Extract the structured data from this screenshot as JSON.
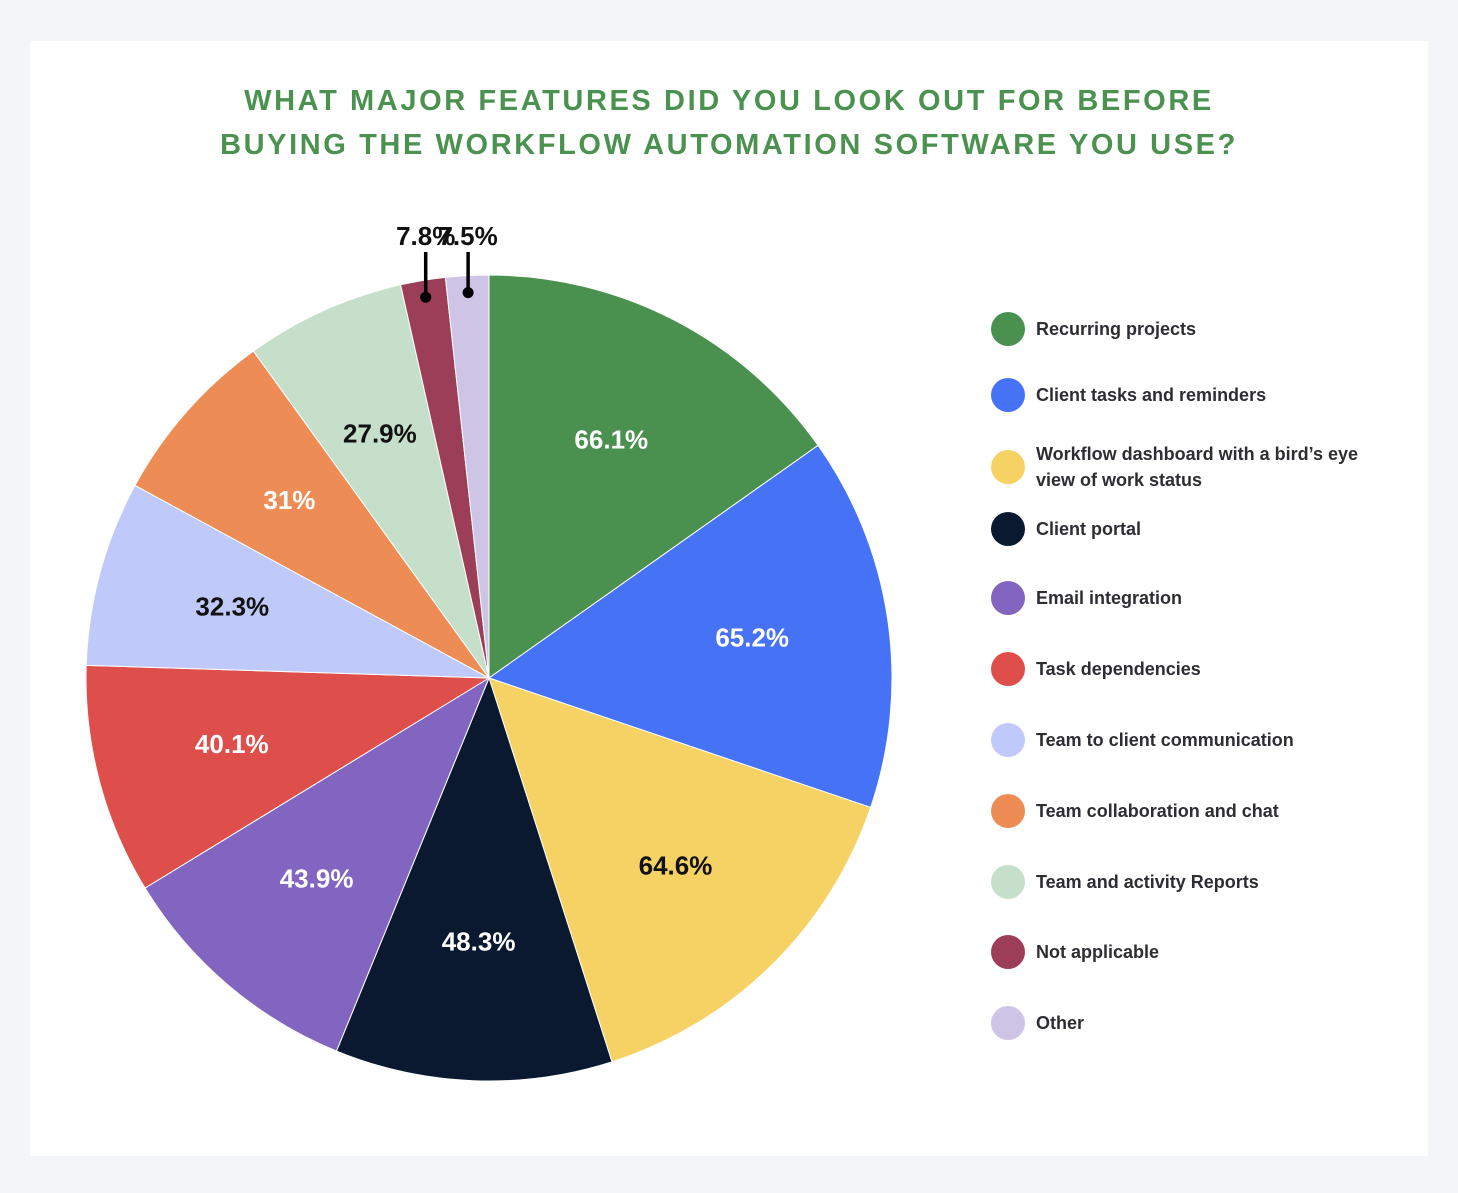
{
  "chart_data": {
    "type": "pie",
    "title_lines": [
      "WHAT MAJOR FEATURES DID YOU LOOK OUT FOR BEFORE",
      "BUYING THE WORKFLOW AUTOMATION SOFTWARE YOU USE?"
    ],
    "slices": [
      {
        "label": "Recurring projects",
        "value": 66.1,
        "display": "66.1%",
        "color": "#4a914f",
        "text_color": "#ffffff"
      },
      {
        "label": "Client tasks and reminders",
        "value": 65.2,
        "display": "65.2%",
        "color": "#4672f5",
        "text_color": "#ffffff"
      },
      {
        "label": "Workflow dashboard with a bird’s eye view of work status",
        "value": 64.6,
        "display": "64.6%",
        "color": "#f6d264",
        "text_color": "#111111"
      },
      {
        "label": "Client portal",
        "value": 48.3,
        "display": "48.3%",
        "color": "#0a1930",
        "text_color": "#ffffff"
      },
      {
        "label": "Email integration",
        "value": 43.9,
        "display": "43.9%",
        "color": "#8165c0",
        "text_color": "#ffffff"
      },
      {
        "label": "Task dependencies",
        "value": 40.1,
        "display": "40.1%",
        "color": "#de4e4a",
        "text_color": "#ffffff"
      },
      {
        "label": "Team to client communication",
        "value": 32.3,
        "display": "32.3%",
        "color": "#bfcafb",
        "text_color": "#111111"
      },
      {
        "label": "Team collaboration and chat",
        "value": 31,
        "display": "31%",
        "color": "#ee8c56",
        "text_color": "#ffffff"
      },
      {
        "label": "Team and activity Reports",
        "value": 27.9,
        "display": "27.9%",
        "color": "#c5dfca",
        "text_color": "#111111"
      },
      {
        "label": "Not applicable",
        "value": 7.8,
        "display": "7.8%",
        "color": "#9d3e58",
        "text_color": "#111111"
      },
      {
        "label": "Other",
        "value": 7.5,
        "display": "7.5%",
        "color": "#cdc4e6",
        "text_color": "#111111"
      }
    ],
    "legend_placement": "right"
  }
}
